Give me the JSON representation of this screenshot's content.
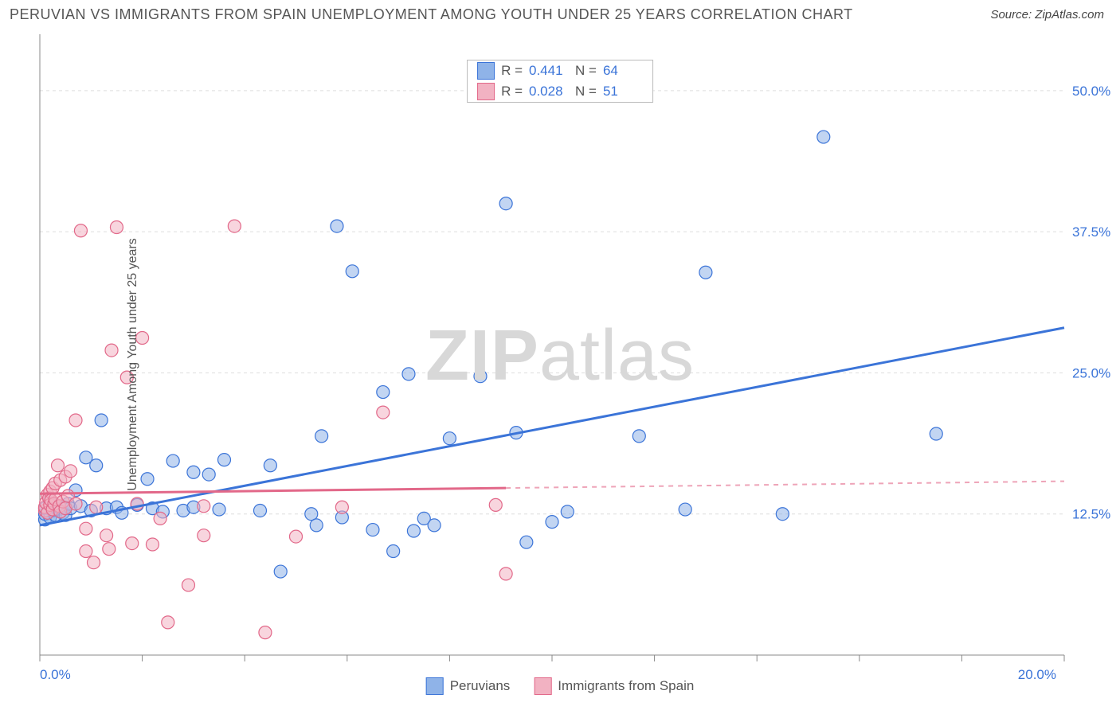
{
  "title": "PERUVIAN VS IMMIGRANTS FROM SPAIN UNEMPLOYMENT AMONG YOUTH UNDER 25 YEARS CORRELATION CHART",
  "source": "Source: ZipAtlas.com",
  "watermark_a": "ZIP",
  "watermark_b": "atlas",
  "ylabel": "Unemployment Among Youth under 25 years",
  "chart": {
    "type": "scatter",
    "xlim": [
      0,
      20
    ],
    "ylim": [
      0,
      55
    ],
    "x_ticks": [
      0,
      20
    ],
    "x_tick_labels": [
      "0.0%",
      "20.0%"
    ],
    "x_minor_ticks": [
      2,
      4,
      6,
      8,
      10,
      12,
      14,
      16,
      18
    ],
    "y_ticks": [
      12.5,
      25.0,
      37.5,
      50.0
    ],
    "y_tick_labels": [
      "12.5%",
      "25.0%",
      "37.5%",
      "50.0%"
    ],
    "grid_color": "#dddddd",
    "axis_color": "#888888",
    "background_color": "#ffffff",
    "marker_radius": 8,
    "marker_opacity": 0.55,
    "series": [
      {
        "name": "Peruvians",
        "fill": "#8fb3e8",
        "stroke": "#3b74d8",
        "R": "0.441",
        "N": "64",
        "trend": {
          "start": [
            0,
            11.5
          ],
          "end": [
            20,
            29
          ],
          "solid_to": 20
        },
        "points": [
          [
            0.1,
            12
          ],
          [
            0.1,
            12.5
          ],
          [
            0.1,
            13
          ],
          [
            0.2,
            12.2
          ],
          [
            0.2,
            13.8
          ],
          [
            0.25,
            12.8
          ],
          [
            0.3,
            12.4
          ],
          [
            0.3,
            13.3
          ],
          [
            0.35,
            12.9
          ],
          [
            0.4,
            13
          ],
          [
            0.45,
            12.6
          ],
          [
            0.5,
            13.1
          ],
          [
            0.5,
            12.4
          ],
          [
            0.55,
            13.4
          ],
          [
            0.6,
            13
          ],
          [
            0.7,
            14.6
          ],
          [
            0.8,
            13.2
          ],
          [
            0.9,
            17.5
          ],
          [
            1.0,
            12.8
          ],
          [
            1.1,
            16.8
          ],
          [
            1.2,
            20.8
          ],
          [
            1.3,
            13
          ],
          [
            1.5,
            13.1
          ],
          [
            1.6,
            12.6
          ],
          [
            1.9,
            13.3
          ],
          [
            2.1,
            15.6
          ],
          [
            2.2,
            13
          ],
          [
            2.4,
            12.7
          ],
          [
            2.6,
            17.2
          ],
          [
            2.8,
            12.8
          ],
          [
            3.0,
            16.2
          ],
          [
            3.0,
            13.1
          ],
          [
            3.3,
            16
          ],
          [
            3.5,
            12.9
          ],
          [
            3.6,
            17.3
          ],
          [
            4.3,
            12.8
          ],
          [
            4.5,
            16.8
          ],
          [
            4.7,
            7.4
          ],
          [
            5.3,
            12.5
          ],
          [
            5.4,
            11.5
          ],
          [
            5.5,
            19.4
          ],
          [
            5.8,
            38.0
          ],
          [
            5.9,
            12.2
          ],
          [
            6.1,
            34.0
          ],
          [
            6.5,
            11.1
          ],
          [
            6.7,
            23.3
          ],
          [
            6.9,
            9.2
          ],
          [
            7.2,
            24.9
          ],
          [
            7.3,
            11.0
          ],
          [
            7.5,
            12.1
          ],
          [
            7.7,
            11.5
          ],
          [
            8.0,
            19.2
          ],
          [
            8.6,
            24.7
          ],
          [
            9.1,
            40.0
          ],
          [
            9.3,
            19.7
          ],
          [
            9.5,
            10.0
          ],
          [
            10.0,
            11.8
          ],
          [
            10.3,
            12.7
          ],
          [
            11.7,
            19.4
          ],
          [
            12.6,
            12.9
          ],
          [
            13.0,
            33.9
          ],
          [
            14.5,
            12.5
          ],
          [
            15.3,
            45.9
          ],
          [
            17.5,
            19.6
          ]
        ]
      },
      {
        "name": "Immigrants from Spain",
        "fill": "#f2b2c2",
        "stroke": "#e26889",
        "R": "0.028",
        "N": "51",
        "trend": {
          "start": [
            0,
            14.3
          ],
          "end": [
            20,
            15.4
          ],
          "solid_to": 9.1
        },
        "points": [
          [
            0.1,
            12.8
          ],
          [
            0.1,
            13.1
          ],
          [
            0.12,
            13.5
          ],
          [
            0.15,
            12.6
          ],
          [
            0.15,
            14.2
          ],
          [
            0.18,
            13.9
          ],
          [
            0.2,
            13.3
          ],
          [
            0.2,
            14.5
          ],
          [
            0.22,
            13.7
          ],
          [
            0.25,
            12.9
          ],
          [
            0.25,
            14.8
          ],
          [
            0.28,
            13.4
          ],
          [
            0.3,
            15.2
          ],
          [
            0.3,
            13.8
          ],
          [
            0.35,
            16.8
          ],
          [
            0.38,
            13.2
          ],
          [
            0.4,
            12.7
          ],
          [
            0.4,
            15.5
          ],
          [
            0.45,
            13.6
          ],
          [
            0.5,
            15.8
          ],
          [
            0.5,
            13.0
          ],
          [
            0.55,
            14.1
          ],
          [
            0.6,
            16.3
          ],
          [
            0.7,
            13.4
          ],
          [
            0.7,
            20.8
          ],
          [
            0.8,
            37.6
          ],
          [
            0.9,
            9.2
          ],
          [
            0.9,
            11.2
          ],
          [
            1.05,
            8.2
          ],
          [
            1.1,
            13.1
          ],
          [
            1.3,
            10.6
          ],
          [
            1.35,
            9.4
          ],
          [
            1.4,
            27.0
          ],
          [
            1.5,
            37.9
          ],
          [
            1.7,
            24.6
          ],
          [
            1.8,
            9.9
          ],
          [
            1.9,
            13.4
          ],
          [
            2.0,
            28.1
          ],
          [
            2.2,
            9.8
          ],
          [
            2.35,
            12.1
          ],
          [
            2.5,
            2.9
          ],
          [
            2.9,
            6.2
          ],
          [
            3.2,
            10.6
          ],
          [
            3.2,
            13.2
          ],
          [
            3.8,
            38.0
          ],
          [
            4.4,
            2.0
          ],
          [
            5.0,
            10.5
          ],
          [
            5.9,
            13.1
          ],
          [
            6.7,
            21.5
          ],
          [
            8.9,
            13.3
          ],
          [
            9.1,
            7.2
          ]
        ]
      }
    ],
    "legend_bottom": [
      "Peruvians",
      "Immigrants from Spain"
    ]
  }
}
